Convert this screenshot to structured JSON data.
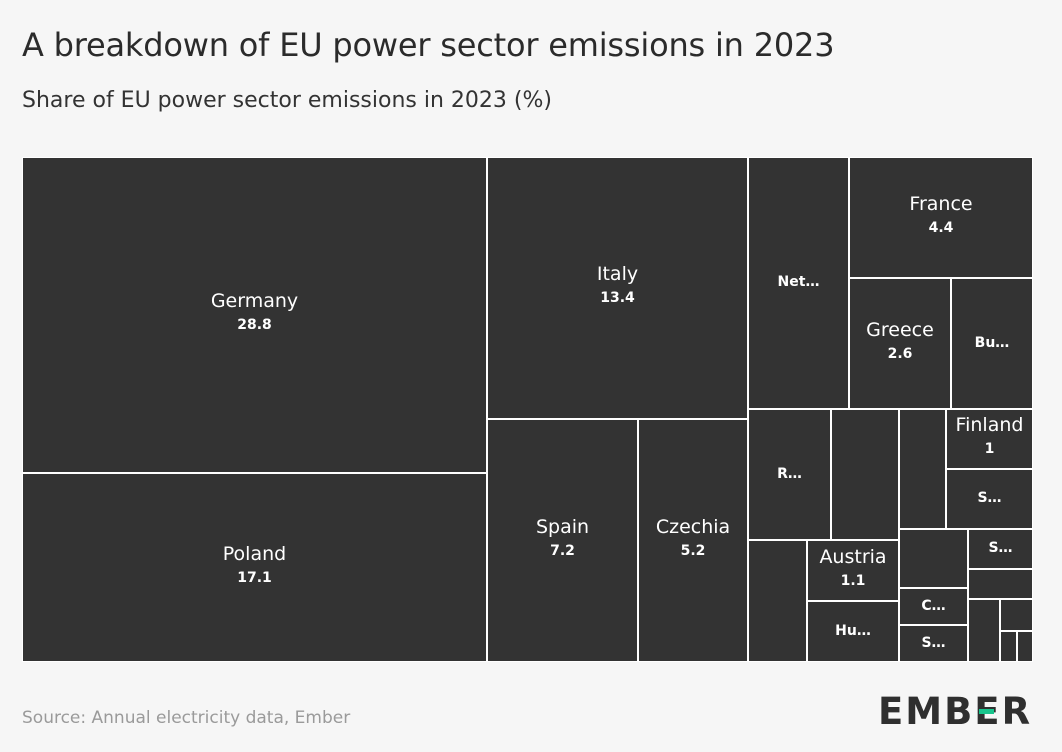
{
  "title": "A breakdown of EU power sector emissions in 2023",
  "subtitle": "Share of EU power sector emissions in 2023 (%)",
  "source": "Source: Annual electricity data, Ember",
  "logo": {
    "text_before": "EMB",
    "text_mid": "E",
    "text_after": "R",
    "accent_color": "#17c48c"
  },
  "colors": {
    "cell": "#333333",
    "border": "#ffffff",
    "background": "#f6f6f6"
  },
  "chart_data": {
    "type": "treemap",
    "unit": "%",
    "cells": [
      {
        "label": "Germany",
        "value": 28.8
      },
      {
        "label": "Poland",
        "value": 17.1
      },
      {
        "label": "Italy",
        "value": 13.4
      },
      {
        "label": "Spain",
        "value": 7.2
      },
      {
        "label": "Czechia",
        "value": 5.2
      },
      {
        "label": "Net…",
        "value": null
      },
      {
        "label": "France",
        "value": 4.4
      },
      {
        "label": "Greece",
        "value": 2.6
      },
      {
        "label": "Bu…",
        "value": null
      },
      {
        "label": "R…",
        "value": null
      },
      {
        "label": "",
        "value": null
      },
      {
        "label": "",
        "value": null
      },
      {
        "label": "Finland",
        "value": 1
      },
      {
        "label": "S…",
        "value": null
      },
      {
        "label": "",
        "value": null
      },
      {
        "label": "Austria",
        "value": 1.1
      },
      {
        "label": "Hu…",
        "value": null
      },
      {
        "label": "",
        "value": null
      },
      {
        "label": "S…",
        "value": null
      },
      {
        "label": "",
        "value": null
      },
      {
        "label": "C…",
        "value": null
      },
      {
        "label": "S…",
        "value": null
      },
      {
        "label": "",
        "value": null
      },
      {
        "label": "",
        "value": null
      },
      {
        "label": "",
        "value": null
      },
      {
        "label": "",
        "value": null
      }
    ]
  }
}
